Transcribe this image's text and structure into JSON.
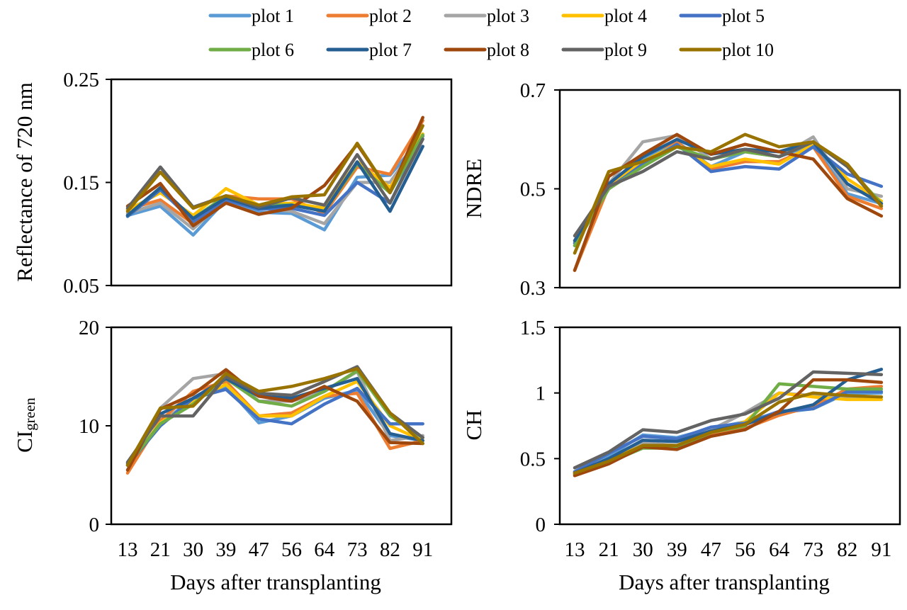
{
  "legend": {
    "position": "top",
    "items": [
      {
        "name": "plot 1",
        "color": "#5B9BD5"
      },
      {
        "name": "plot 2",
        "color": "#ED7D31"
      },
      {
        "name": "plot 3",
        "color": "#A5A5A5"
      },
      {
        "name": "plot 4",
        "color": "#FFC000"
      },
      {
        "name": "plot 5",
        "color": "#4472C4"
      },
      {
        "name": "plot 6",
        "color": "#70AD47"
      },
      {
        "name": "plot 7",
        "color": "#255E91"
      },
      {
        "name": "plot 8",
        "color": "#9E480E"
      },
      {
        "name": "plot 9",
        "color": "#636363"
      },
      {
        "name": "plot 10",
        "color": "#997300"
      }
    ]
  },
  "chart_data": [
    {
      "type": "line",
      "id": "reflectance",
      "ylabel": "Reflectance of 720 nm",
      "xlabel": "",
      "x": [
        "13",
        "21",
        "30",
        "39",
        "47",
        "56",
        "64",
        "73",
        "82",
        "91"
      ],
      "ylim": [
        0.05,
        0.25
      ],
      "yticks": [
        "0.05",
        "0.15",
        "0.25"
      ],
      "ytick_values": [
        0.05,
        0.15,
        0.25
      ],
      "series": [
        {
          "name": "plot 1",
          "values": [
            0.118,
            0.127,
            0.099,
            0.133,
            0.121,
            0.12,
            0.104,
            0.155,
            0.157,
            0.195
          ]
        },
        {
          "name": "plot 2",
          "values": [
            0.124,
            0.133,
            0.11,
            0.137,
            0.134,
            0.134,
            0.12,
            0.165,
            0.158,
            0.21
          ]
        },
        {
          "name": "plot 3",
          "values": [
            0.12,
            0.13,
            0.105,
            0.134,
            0.125,
            0.122,
            0.11,
            0.15,
            0.15,
            0.195
          ]
        },
        {
          "name": "plot 4",
          "values": [
            0.123,
            0.14,
            0.118,
            0.144,
            0.128,
            0.13,
            0.125,
            0.17,
            0.145,
            0.197
          ]
        },
        {
          "name": "plot 5",
          "values": [
            0.117,
            0.143,
            0.112,
            0.133,
            0.124,
            0.125,
            0.118,
            0.15,
            0.13,
            0.195
          ]
        },
        {
          "name": "plot 6",
          "values": [
            0.118,
            0.145,
            0.115,
            0.137,
            0.128,
            0.128,
            0.122,
            0.168,
            0.14,
            0.196
          ]
        },
        {
          "name": "plot 7",
          "values": [
            0.118,
            0.145,
            0.115,
            0.135,
            0.125,
            0.128,
            0.122,
            0.17,
            0.122,
            0.185
          ]
        },
        {
          "name": "plot 8",
          "values": [
            0.127,
            0.149,
            0.108,
            0.13,
            0.119,
            0.125,
            0.147,
            0.187,
            0.14,
            0.213
          ]
        },
        {
          "name": "plot 9",
          "values": [
            0.125,
            0.165,
            0.126,
            0.137,
            0.126,
            0.135,
            0.128,
            0.177,
            0.13,
            0.192
          ]
        },
        {
          "name": "plot 10",
          "values": [
            0.122,
            0.16,
            0.125,
            0.137,
            0.128,
            0.136,
            0.138,
            0.188,
            0.14,
            0.205
          ]
        }
      ]
    },
    {
      "type": "line",
      "id": "ndre",
      "ylabel": "NDRE",
      "xlabel": "",
      "x": [
        "13",
        "21",
        "30",
        "39",
        "47",
        "56",
        "64",
        "73",
        "82",
        "91"
      ],
      "ylim": [
        0.3,
        0.7
      ],
      "yticks": [
        "0.3",
        "0.5",
        "0.7"
      ],
      "ytick_values": [
        0.3,
        0.5,
        0.7
      ],
      "series": [
        {
          "name": "plot 1",
          "values": [
            0.385,
            0.505,
            0.56,
            0.595,
            0.545,
            0.575,
            0.565,
            0.59,
            0.49,
            0.47
          ]
        },
        {
          "name": "plot 2",
          "values": [
            0.335,
            0.505,
            0.57,
            0.595,
            0.54,
            0.555,
            0.555,
            0.585,
            0.485,
            0.46
          ]
        },
        {
          "name": "plot 3",
          "values": [
            0.39,
            0.51,
            0.595,
            0.608,
            0.56,
            0.575,
            0.565,
            0.605,
            0.5,
            0.485
          ]
        },
        {
          "name": "plot 4",
          "values": [
            0.395,
            0.51,
            0.555,
            0.59,
            0.545,
            0.56,
            0.55,
            0.59,
            0.52,
            0.475
          ]
        },
        {
          "name": "plot 5",
          "values": [
            0.39,
            0.5,
            0.55,
            0.59,
            0.535,
            0.545,
            0.54,
            0.585,
            0.53,
            0.505
          ]
        },
        {
          "name": "plot 6",
          "values": [
            0.385,
            0.5,
            0.545,
            0.585,
            0.56,
            0.575,
            0.565,
            0.595,
            0.545,
            0.47
          ]
        },
        {
          "name": "plot 7",
          "values": [
            0.395,
            0.51,
            0.565,
            0.6,
            0.57,
            0.58,
            0.575,
            0.595,
            0.51,
            0.47
          ]
        },
        {
          "name": "plot 8",
          "values": [
            0.335,
            0.525,
            0.57,
            0.61,
            0.57,
            0.59,
            0.575,
            0.56,
            0.48,
            0.445
          ]
        },
        {
          "name": "plot 9",
          "values": [
            0.405,
            0.505,
            0.535,
            0.575,
            0.56,
            0.58,
            0.565,
            0.595,
            0.545,
            0.465
          ]
        },
        {
          "name": "plot 10",
          "values": [
            0.37,
            0.535,
            0.555,
            0.585,
            0.575,
            0.61,
            0.585,
            0.595,
            0.55,
            0.465
          ]
        }
      ]
    },
    {
      "type": "line",
      "id": "cigreen",
      "ylabel": "CI",
      "ylabel_sub": "green",
      "xlabel": "Days after transplanting",
      "x": [
        "13",
        "21",
        "30",
        "39",
        "47",
        "56",
        "64",
        "73",
        "82",
        "91"
      ],
      "ylim": [
        0,
        20
      ],
      "yticks": [
        "0",
        "10",
        "20"
      ],
      "ytick_values": [
        0,
        10,
        20
      ],
      "series": [
        {
          "name": "plot 1",
          "values": [
            6.0,
            10.2,
            12.8,
            14.0,
            10.3,
            11.0,
            12.8,
            13.6,
            9.0,
            8.5
          ]
        },
        {
          "name": "plot 2",
          "values": [
            5.2,
            10.5,
            13.5,
            14.5,
            11.0,
            11.3,
            13.0,
            13.3,
            7.7,
            8.5
          ]
        },
        {
          "name": "plot 3",
          "values": [
            6.0,
            11.8,
            14.8,
            15.3,
            12.5,
            12.5,
            13.5,
            15.5,
            8.5,
            9.0
          ]
        },
        {
          "name": "plot 4",
          "values": [
            6.0,
            10.3,
            12.5,
            14.2,
            11.0,
            11.0,
            13.0,
            14.5,
            10.0,
            8.5
          ]
        },
        {
          "name": "plot 5",
          "values": [
            6.0,
            10.0,
            12.8,
            13.7,
            10.7,
            10.2,
            12.2,
            13.8,
            10.2,
            10.2
          ]
        },
        {
          "name": "plot 6",
          "values": [
            6.0,
            10.2,
            12.2,
            14.8,
            12.5,
            12.0,
            13.5,
            15.6,
            11.0,
            8.8
          ]
        },
        {
          "name": "plot 7",
          "values": [
            6.2,
            11.2,
            12.8,
            14.8,
            13.0,
            12.8,
            13.8,
            14.8,
            9.2,
            8.5
          ]
        },
        {
          "name": "plot 8",
          "values": [
            5.5,
            11.7,
            13.2,
            15.7,
            13.0,
            12.5,
            14.0,
            12.5,
            8.3,
            8.2
          ]
        },
        {
          "name": "plot 9",
          "values": [
            6.3,
            11.0,
            11.0,
            15.0,
            13.3,
            13.1,
            14.5,
            16.0,
            11.3,
            8.8
          ]
        },
        {
          "name": "plot 10",
          "values": [
            6.0,
            11.8,
            12.0,
            15.3,
            13.5,
            14.0,
            14.8,
            15.8,
            11.3,
            8.2
          ]
        }
      ]
    },
    {
      "type": "line",
      "id": "ch",
      "ylabel": "CH",
      "xlabel": "Days after transplanting",
      "x": [
        "13",
        "21",
        "30",
        "39",
        "47",
        "56",
        "64",
        "73",
        "82",
        "91"
      ],
      "ylim": [
        0,
        1.5
      ],
      "yticks": [
        "0",
        "0.5",
        "1",
        "1.5"
      ],
      "ytick_values": [
        0,
        0.5,
        1,
        1.5
      ],
      "series": [
        {
          "name": "plot 1",
          "values": [
            0.4,
            0.52,
            0.68,
            0.66,
            0.73,
            0.78,
            0.85,
            0.88,
            1.0,
            1.0
          ]
        },
        {
          "name": "plot 2",
          "values": [
            0.38,
            0.47,
            0.6,
            0.58,
            0.68,
            0.73,
            0.83,
            0.9,
            1.03,
            1.05
          ]
        },
        {
          "name": "plot 3",
          "values": [
            0.4,
            0.5,
            0.62,
            0.6,
            0.72,
            0.85,
            1.0,
            0.98,
            0.97,
            0.97
          ]
        },
        {
          "name": "plot 4",
          "values": [
            0.4,
            0.49,
            0.6,
            0.59,
            0.7,
            0.78,
            1.0,
            0.97,
            0.95,
            0.95
          ]
        },
        {
          "name": "plot 5",
          "values": [
            0.4,
            0.54,
            0.67,
            0.65,
            0.74,
            0.77,
            0.86,
            0.88,
            1.01,
            1.01
          ]
        },
        {
          "name": "plot 6",
          "values": [
            0.38,
            0.47,
            0.58,
            0.58,
            0.7,
            0.75,
            1.07,
            1.05,
            1.03,
            1.03
          ]
        },
        {
          "name": "plot 7",
          "values": [
            0.39,
            0.5,
            0.64,
            0.63,
            0.71,
            0.76,
            0.85,
            0.91,
            1.1,
            1.18
          ]
        },
        {
          "name": "plot 8",
          "values": [
            0.37,
            0.46,
            0.59,
            0.57,
            0.67,
            0.72,
            0.86,
            1.1,
            1.1,
            1.08
          ]
        },
        {
          "name": "plot 9",
          "values": [
            0.43,
            0.55,
            0.72,
            0.7,
            0.79,
            0.84,
            0.96,
            1.16,
            1.15,
            1.14
          ]
        },
        {
          "name": "plot 10",
          "values": [
            0.39,
            0.48,
            0.6,
            0.6,
            0.7,
            0.76,
            0.93,
            1.0,
            0.98,
            0.97
          ]
        }
      ]
    }
  ]
}
